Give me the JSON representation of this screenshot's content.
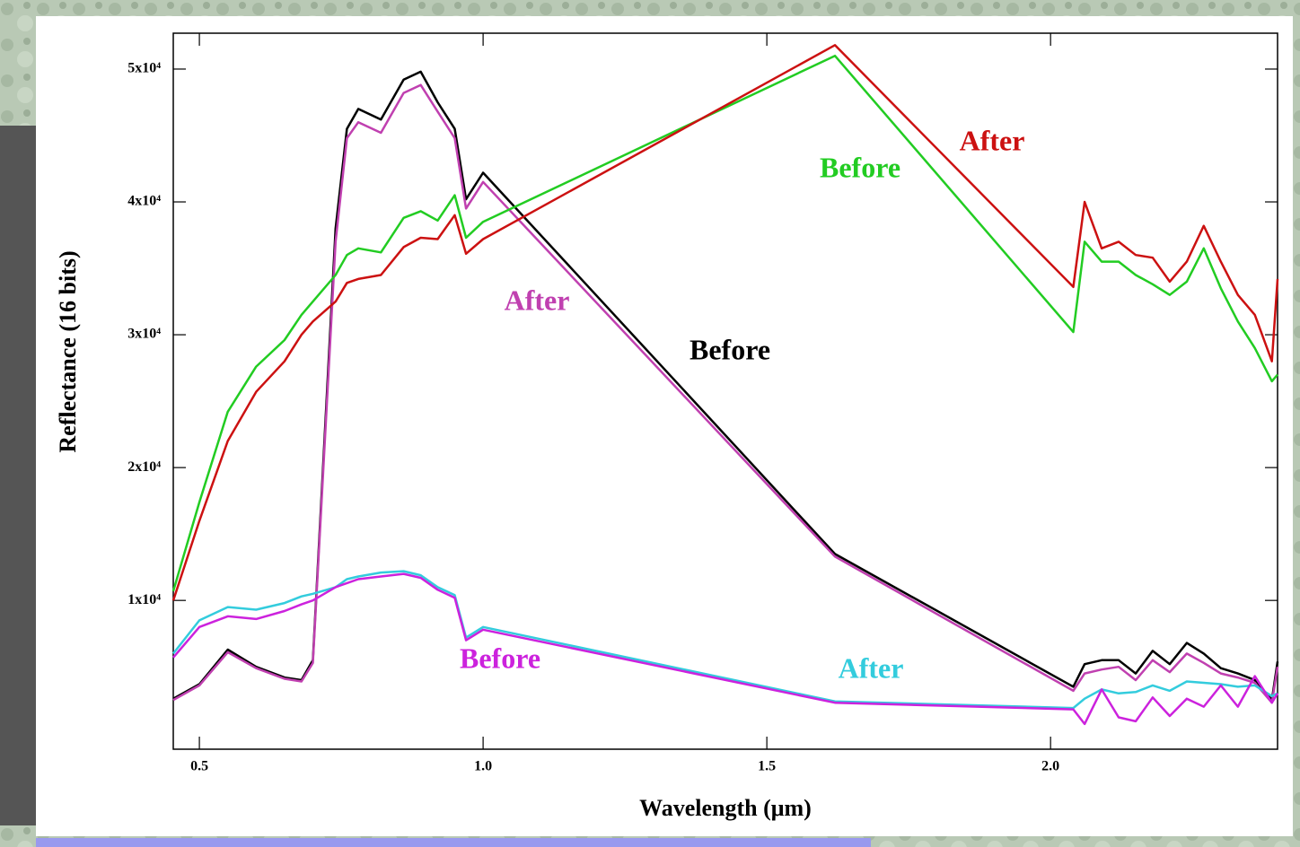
{
  "chart_data": {
    "type": "line",
    "xlabel": "Wavelength (μm)",
    "ylabel": "Reflectance (16 bits)",
    "xlim": [
      0.454,
      2.4
    ],
    "ylim": [
      -1200,
      52700
    ],
    "xticks": [
      0.5,
      {
        "value": 1,
        "label": "1.0"
      },
      1.5,
      {
        "value": 2,
        "label": "2.0"
      }
    ],
    "yticks": [
      {
        "value": 10000,
        "label": "1x10⁴"
      },
      {
        "value": 20000,
        "label": "2x10⁴"
      },
      {
        "value": 30000,
        "label": "3x10⁴"
      },
      {
        "value": 40000,
        "label": "4x10⁴"
      },
      {
        "value": 50000,
        "label": "5x10⁴"
      }
    ],
    "x": [
      0.454,
      0.5,
      0.55,
      0.6,
      0.65,
      0.68,
      0.7,
      0.74,
      0.76,
      0.78,
      0.82,
      0.86,
      0.89,
      0.92,
      0.95,
      0.97,
      1.0,
      1.62,
      2.04,
      2.06,
      2.09,
      2.12,
      2.15,
      2.18,
      2.21,
      2.24,
      2.27,
      2.3,
      2.33,
      2.36,
      2.39,
      2.4
    ],
    "series": [
      {
        "color": "#000000",
        "values": [
          2600,
          3700,
          6300,
          5000,
          4200,
          4000,
          5500,
          38000,
          45500,
          47000,
          46200,
          49200,
          49800,
          47500,
          45500,
          40200,
          42200,
          13500,
          3500,
          5200,
          5500,
          5500,
          4500,
          6200,
          5200,
          6800,
          6000,
          4900,
          4500,
          4000,
          2500,
          5400
        ]
      },
      {
        "color": "#c040b0",
        "values": [
          2500,
          3600,
          6100,
          4900,
          4100,
          3900,
          5300,
          37000,
          44800,
          46000,
          45200,
          48200,
          48800,
          46800,
          44800,
          39500,
          41500,
          13300,
          3200,
          4500,
          4800,
          5000,
          4000,
          5500,
          4600,
          6000,
          5300,
          4500,
          4200,
          3800,
          2300,
          5000
        ]
      },
      {
        "color": "#22cc22",
        "values": [
          10700,
          17400,
          24200,
          27600,
          29600,
          31500,
          32500,
          34500,
          36000,
          36500,
          36200,
          38800,
          39300,
          38600,
          40500,
          37300,
          38500,
          51000,
          30200,
          37000,
          35500,
          35500,
          34500,
          33800,
          33000,
          34000,
          36500,
          33500,
          31000,
          29000,
          26500,
          27000
        ]
      },
      {
        "color": "#cc1111",
        "values": [
          10000,
          16000,
          22000,
          25700,
          28000,
          30000,
          31000,
          32500,
          33900,
          34200,
          34500,
          36600,
          37300,
          37200,
          39000,
          36100,
          37200,
          51800,
          33600,
          40000,
          36500,
          37000,
          36000,
          35800,
          34000,
          35500,
          38200,
          35500,
          33000,
          31500,
          28000,
          34200
        ]
      },
      {
        "color": "#33ccdd",
        "values": [
          6000,
          8500,
          9500,
          9300,
          9800,
          10300,
          10500,
          11000,
          11600,
          11800,
          12100,
          12200,
          11900,
          11000,
          10400,
          7200,
          8000,
          2400,
          1900,
          2600,
          3300,
          3000,
          3100,
          3600,
          3200,
          3900,
          3800,
          3700,
          3500,
          3600,
          2800,
          3000
        ]
      },
      {
        "color": "#cc22dd",
        "values": [
          5700,
          8000,
          8800,
          8600,
          9200,
          9700,
          10000,
          11000,
          11300,
          11600,
          11800,
          12000,
          11700,
          10800,
          10200,
          7000,
          7800,
          2300,
          1800,
          700,
          3300,
          1200,
          900,
          2700,
          1300,
          2600,
          2000,
          3600,
          2000,
          4300,
          2300,
          3000
        ]
      }
    ],
    "annotations": [
      {
        "text": "After",
        "color": "#cc1111"
      },
      {
        "text": "Before",
        "color": "#22cc22"
      },
      {
        "text": "After",
        "color": "#c040b0"
      },
      {
        "text": "Before",
        "color": "#000000"
      },
      {
        "text": "Before",
        "color": "#cc22dd"
      },
      {
        "text": "After",
        "color": "#33ccdd"
      }
    ]
  }
}
